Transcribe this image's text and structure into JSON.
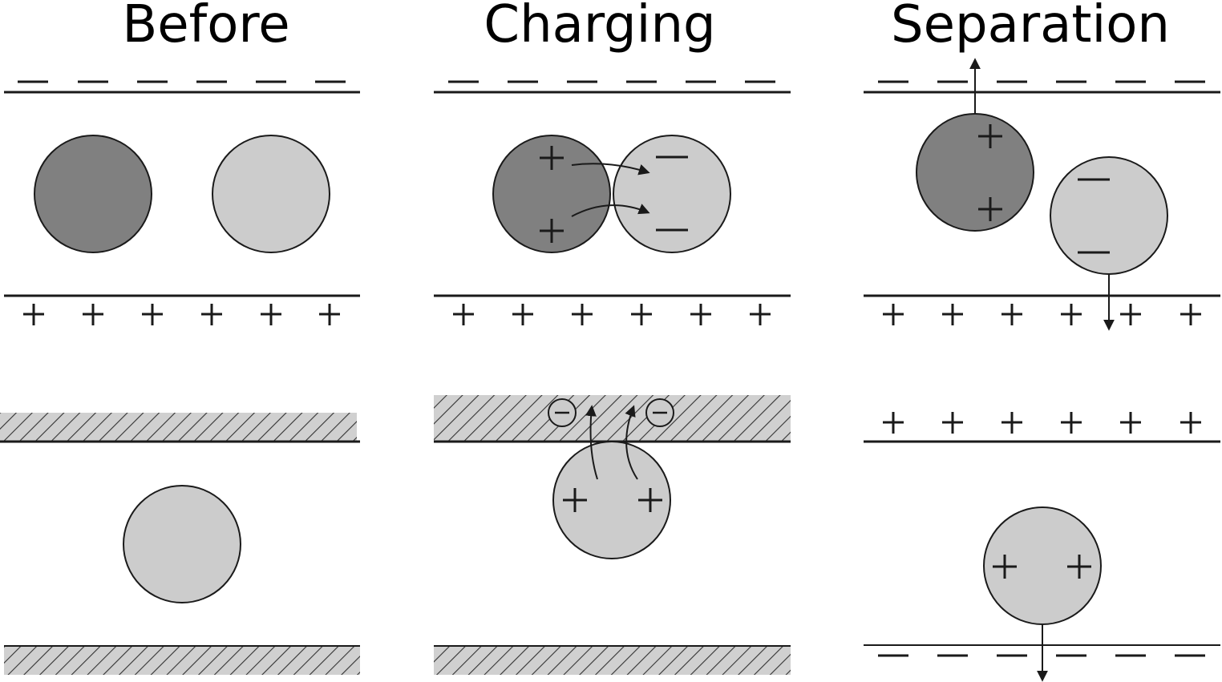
{
  "panels": [
    {
      "title": "Before"
    },
    {
      "title": "Charging"
    },
    {
      "title": "Separation"
    }
  ],
  "symbols": {
    "plus": "+",
    "minus": "−",
    "electron": "−"
  },
  "colors": {
    "dark_particle": "#808080",
    "light_particle": "#cccccc",
    "hatch_fill": "#d0d0d0",
    "line": "#1a1a1a"
  }
}
